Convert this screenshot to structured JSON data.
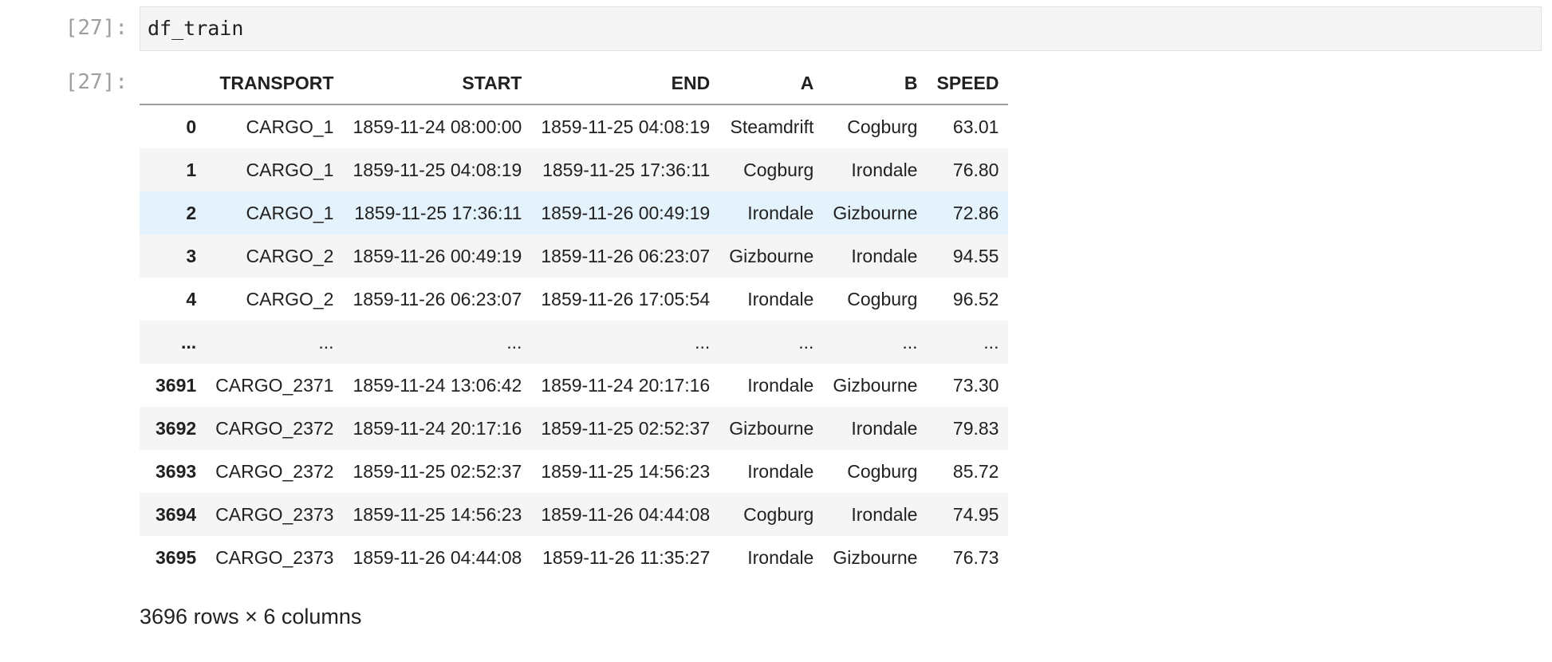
{
  "cell": {
    "input_prompt": "[27]:",
    "code": "df_train",
    "output_prompt": "[27]:"
  },
  "table": {
    "columns": [
      "",
      "TRANSPORT",
      "START",
      "END",
      "A",
      "B",
      "SPEED"
    ],
    "rows": [
      [
        "0",
        "CARGO_1",
        "1859-11-24 08:00:00",
        "1859-11-25 04:08:19",
        "Steamdrift",
        "Cogburg",
        "63.01"
      ],
      [
        "1",
        "CARGO_1",
        "1859-11-25 04:08:19",
        "1859-11-25 17:36:11",
        "Cogburg",
        "Irondale",
        "76.80"
      ],
      [
        "2",
        "CARGO_1",
        "1859-11-25 17:36:11",
        "1859-11-26 00:49:19",
        "Irondale",
        "Gizbourne",
        "72.86"
      ],
      [
        "3",
        "CARGO_2",
        "1859-11-26 00:49:19",
        "1859-11-26 06:23:07",
        "Gizbourne",
        "Irondale",
        "94.55"
      ],
      [
        "4",
        "CARGO_2",
        "1859-11-26 06:23:07",
        "1859-11-26 17:05:54",
        "Irondale",
        "Cogburg",
        "96.52"
      ],
      [
        "...",
        "...",
        "...",
        "...",
        "...",
        "...",
        "..."
      ],
      [
        "3691",
        "CARGO_2371",
        "1859-11-24 13:06:42",
        "1859-11-24 20:17:16",
        "Irondale",
        "Gizbourne",
        "73.30"
      ],
      [
        "3692",
        "CARGO_2372",
        "1859-11-24 20:17:16",
        "1859-11-25 02:52:37",
        "Gizbourne",
        "Irondale",
        "79.83"
      ],
      [
        "3693",
        "CARGO_2372",
        "1859-11-25 02:52:37",
        "1859-11-25 14:56:23",
        "Irondale",
        "Cogburg",
        "85.72"
      ],
      [
        "3694",
        "CARGO_2373",
        "1859-11-25 14:56:23",
        "1859-11-26 04:44:08",
        "Cogburg",
        "Irondale",
        "74.95"
      ],
      [
        "3695",
        "CARGO_2373",
        "1859-11-26 04:44:08",
        "1859-11-26 11:35:27",
        "Irondale",
        "Gizbourne",
        "76.73"
      ]
    ],
    "hovered_row": 2
  },
  "summary": "3696 rows × 6 columns",
  "colors": {
    "prompt": "#9e9e9e",
    "cell_background": "#f5f5f5",
    "row_stripe": "#f5f5f5",
    "row_hover": "#e3f2fb"
  }
}
